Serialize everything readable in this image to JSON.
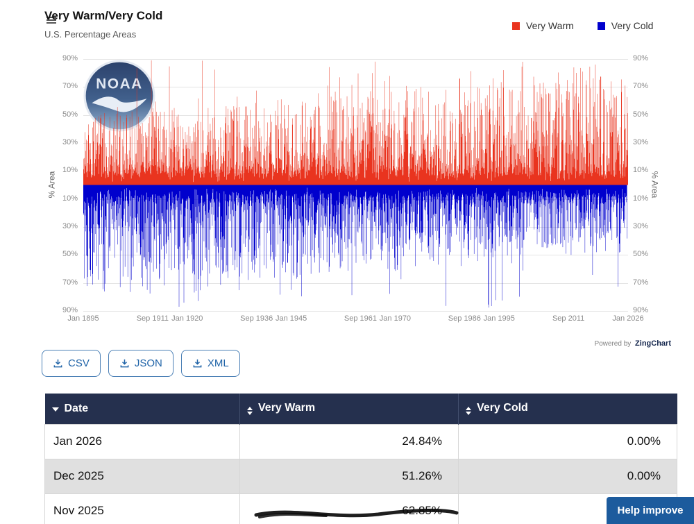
{
  "header": {
    "title": "Very Warm/Very Cold",
    "subtitle": "U.S. Percentage Areas"
  },
  "legend": {
    "items": [
      {
        "label": "Very Warm",
        "color": "#e9341f"
      },
      {
        "label": "Very Cold",
        "color": "#0000cd"
      }
    ]
  },
  "chart_data": {
    "type": "bar",
    "orientation": "diverging-vertical",
    "title": "Very Warm/Very Cold",
    "subtitle": "U.S. Percentage Areas",
    "ylabel_left": "% Area",
    "ylabel_right": "% Area",
    "watermark": "NOAA",
    "y_axis": {
      "max": 90,
      "min": -90,
      "tick_step": 20,
      "unit": "%",
      "grid": true
    },
    "x_axis": {
      "start": "Jan 1895",
      "end": "Jan 2026",
      "interval": "monthly",
      "num_points": 1573,
      "ticks": [
        {
          "label": "Jan 1895",
          "month_index": 0
        },
        {
          "label": "Sep 1911",
          "month_index": 200
        },
        {
          "label": "Jan 1920",
          "month_index": 300
        },
        {
          "label": "Sep 1936",
          "month_index": 500
        },
        {
          "label": "Jan 1945",
          "month_index": 600
        },
        {
          "label": "Sep 1961",
          "month_index": 800
        },
        {
          "label": "Jan 1970",
          "month_index": 900
        },
        {
          "label": "Sep 1986",
          "month_index": 1100
        },
        {
          "label": "Jan 1995",
          "month_index": 1200
        },
        {
          "label": "Sep 2011",
          "month_index": 1400
        },
        {
          "label": "Jan 2026",
          "month_index": 1572
        }
      ]
    },
    "series": [
      {
        "name": "Very Warm",
        "color": "#e9341f",
        "direction": "up",
        "synthesis": {
          "seed": 18951,
          "base_amp_start": 44,
          "base_amp_end": 74,
          "noise": 13,
          "spike_prob_start": 0.012,
          "spike_prob_end": 0.045,
          "spike_max": 89,
          "floor": 7
        }
      },
      {
        "name": "Very Cold",
        "color": "#0000cd",
        "direction": "down",
        "synthesis": {
          "seed": 20261,
          "base_amp_start": 72,
          "base_amp_end": 38,
          "noise": 13,
          "spike_prob_start": 0.035,
          "spike_prob_end": 0.006,
          "spike_max": 88,
          "floor": 7
        }
      }
    ],
    "notable_points": [
      {
        "series": "Very Warm",
        "month_index": 196,
        "value": 89
      },
      {
        "series": "Very Cold",
        "month_index": 184,
        "value": 75
      },
      {
        "series": "Very Cold",
        "month_index": 276,
        "value": 87
      },
      {
        "series": "Very Warm",
        "month_index": 705,
        "value": 71
      },
      {
        "series": "Very Warm",
        "month_index": 1268,
        "value": 88
      },
      {
        "series": "Very Warm",
        "month_index": 1416,
        "value": 84
      },
      {
        "series": "Very Warm",
        "month_index": 1478,
        "value": 86
      }
    ],
    "known_values": [
      {
        "date": "Nov 2025",
        "very_warm": 62.85
      },
      {
        "date": "Dec 2025",
        "very_warm": 51.26,
        "very_cold": 0.0
      },
      {
        "date": "Jan 2026",
        "very_warm": 24.84,
        "very_cold": 0.0
      }
    ]
  },
  "powered_by": {
    "prefix": "Powered by",
    "brand": "ZingChart"
  },
  "export_buttons": [
    {
      "label": "CSV"
    },
    {
      "label": "JSON"
    },
    {
      "label": "XML"
    }
  ],
  "table": {
    "columns": [
      {
        "label": "Date",
        "sort": "desc"
      },
      {
        "label": "Very Warm",
        "sort": "sortable"
      },
      {
        "label": "Very Cold",
        "sort": "sortable"
      }
    ],
    "rows": [
      {
        "date": "Jan 2026",
        "very_warm": "24.84%",
        "very_cold": "0.00%"
      },
      {
        "date": "Dec 2025",
        "very_warm": "51.26%",
        "very_cold": "0.00%"
      },
      {
        "date": "Nov 2025",
        "very_warm": "62.85%",
        "very_cold": ""
      }
    ]
  },
  "help_button": {
    "label": "Help improve"
  },
  "colors": {
    "accent_blue": "#2064a8",
    "table_header_bg": "#25304e",
    "row_alt_bg": "#e0e0e0",
    "help_button_bg": "#1c5b9d"
  }
}
